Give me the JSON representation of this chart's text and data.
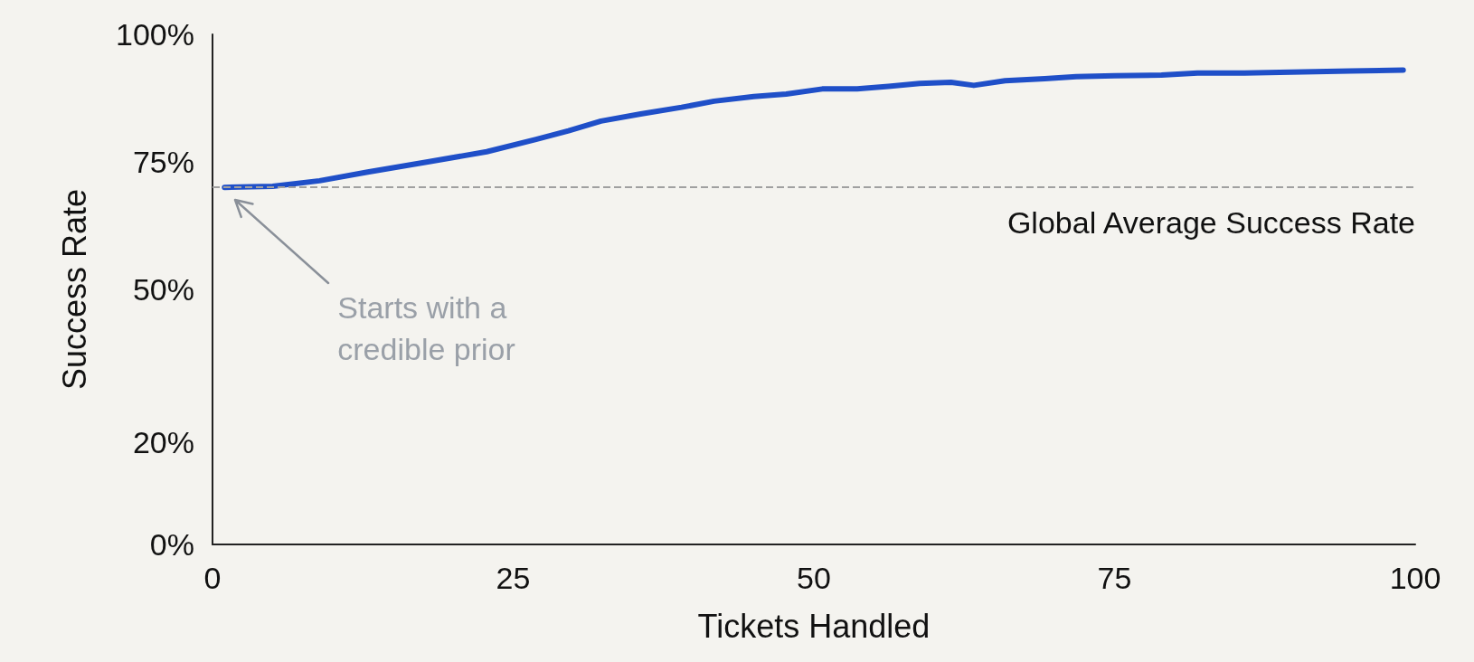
{
  "chart_data": {
    "type": "line",
    "xlabel": "Tickets Handled",
    "ylabel": "Success Rate",
    "xlim": [
      0,
      100
    ],
    "xticks": [
      0,
      25,
      50,
      75,
      100
    ],
    "ylim": [
      0,
      100
    ],
    "yticks": [
      {
        "value": 0,
        "label": "0%"
      },
      {
        "value": 20,
        "label": "20%"
      },
      {
        "value": 50,
        "label": "50%"
      },
      {
        "value": 75,
        "label": "75%"
      },
      {
        "value": 100,
        "label": "100%"
      }
    ],
    "grid": false,
    "marker": "none",
    "line_style": "solid",
    "series": [
      {
        "color": "#1f4fc8",
        "x": [
          1,
          5,
          8.9,
          12.9,
          17.9,
          22.8,
          26.9,
          29.6,
          32.3,
          35.6,
          39,
          41.7,
          45,
          47.7,
          50.7,
          53.6,
          56.2,
          58.8,
          61.4,
          63.3,
          65.9,
          69.2,
          71.8,
          75,
          78.9,
          81.9,
          85.8,
          89.7,
          94.6,
          99
        ],
        "values": [
          70,
          70.2,
          71.3,
          73,
          75,
          77,
          79.4,
          81.1,
          83,
          84.4,
          85.7,
          86.9,
          87.8,
          88.3,
          89.3,
          89.3,
          89.8,
          90.4,
          90.6,
          90,
          90.9,
          91.3,
          91.7,
          91.9,
          92,
          92.4,
          92.4,
          92.6,
          92.8,
          93
        ]
      }
    ],
    "ref_lines": [
      {
        "axis": "y",
        "value": 70,
        "label": "Global Average Success Rate",
        "color": "#a0a0a0",
        "line_style": "dashed"
      }
    ],
    "annotations": [
      "Starts with a credible prior"
    ]
  }
}
